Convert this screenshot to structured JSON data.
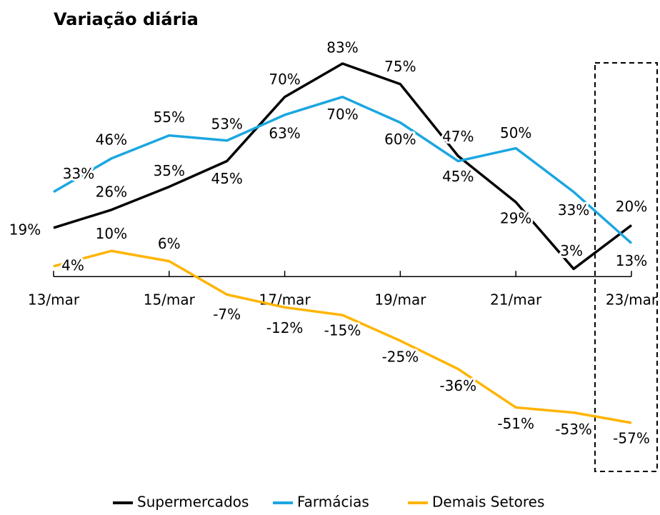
{
  "chart_data": {
    "type": "line",
    "title": "Variação diária",
    "categories": [
      "13/mar",
      null,
      "15/mar",
      null,
      "17/mar",
      null,
      "19/mar",
      null,
      "21/mar",
      null,
      "23/mar"
    ],
    "series": [
      {
        "name": "Supermercados",
        "color": "#000000",
        "values": [
          19,
          26,
          35,
          45,
          70,
          83,
          75,
          47,
          29,
          3,
          20
        ],
        "value_labels": [
          "19%",
          "26%",
          "35%",
          "45%",
          "70%",
          "83%",
          "75%",
          "47%",
          "29%",
          "3%",
          "20%"
        ]
      },
      {
        "name": "Farmácias",
        "color": "#1ba6e0",
        "values": [
          33,
          46,
          55,
          53,
          63,
          70,
          60,
          45,
          50,
          33,
          13
        ],
        "value_labels": [
          "33%",
          "46%",
          "55%",
          "53%",
          "63%",
          "70%",
          "60%",
          "45%",
          "50%",
          "33%",
          "13%"
        ]
      },
      {
        "name": "Demais Setores",
        "color": "#ffb400",
        "values": [
          4,
          10,
          6,
          -7,
          -12,
          -15,
          -25,
          -36,
          -51,
          -53,
          -57
        ],
        "value_labels": [
          "4%",
          "10%",
          "6%",
          "-7%",
          "-12%",
          "-15%",
          "-25%",
          "-36%",
          "-51%",
          "-53%",
          "-57%"
        ]
      }
    ]
  }
}
